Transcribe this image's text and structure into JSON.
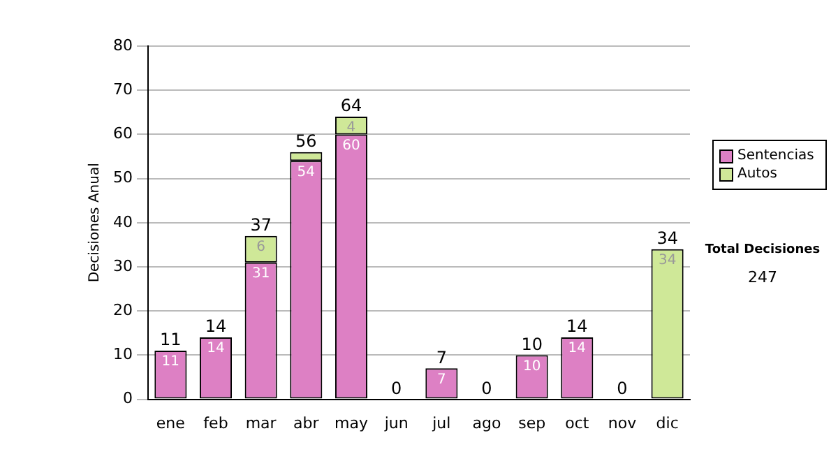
{
  "chart_data": {
    "type": "bar",
    "stacked": true,
    "ylabel": "Decisiones Anual",
    "categories": [
      "ene",
      "feb",
      "mar",
      "abr",
      "may",
      "jun",
      "jul",
      "ago",
      "sep",
      "oct",
      "nov",
      "dic"
    ],
    "series": [
      {
        "name": "Sentencias",
        "color": "#dd80c4",
        "values": [
          11,
          14,
          31,
          54,
          60,
          0,
          7,
          0,
          10,
          14,
          0,
          0
        ],
        "value_labels": [
          "11",
          "14",
          "31",
          "54",
          "60",
          null,
          "7",
          null,
          "10",
          "14",
          null,
          null
        ]
      },
      {
        "name": "Autos",
        "color": "#cfe898",
        "values": [
          0,
          0,
          6,
          2,
          4,
          0,
          0,
          0,
          0,
          0,
          0,
          34
        ],
        "value_labels": [
          null,
          null,
          "6",
          null,
          "4",
          null,
          null,
          null,
          null,
          null,
          null,
          "34"
        ]
      }
    ],
    "totals": [
      "11",
      "14",
      "37",
      "56",
      "64",
      "0",
      "7",
      "0",
      "10",
      "14",
      "0",
      "34"
    ],
    "ylim": [
      0,
      80
    ],
    "yticks": [
      0,
      10,
      20,
      30,
      40,
      50,
      60,
      70,
      80
    ],
    "grid": "y",
    "legend": "right",
    "annotations": [
      "Total Decisiones",
      "247"
    ]
  }
}
